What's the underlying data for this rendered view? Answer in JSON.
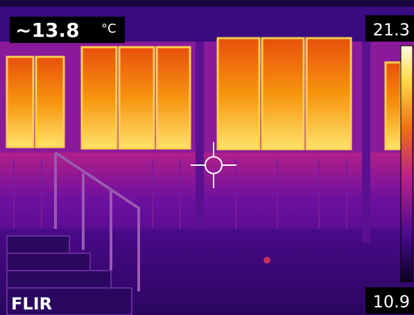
{
  "measurement": {
    "value": "~13.8",
    "unit": "°C"
  },
  "scale": {
    "max": "21.3",
    "min": "10.9"
  },
  "logo": "FLIR"
}
